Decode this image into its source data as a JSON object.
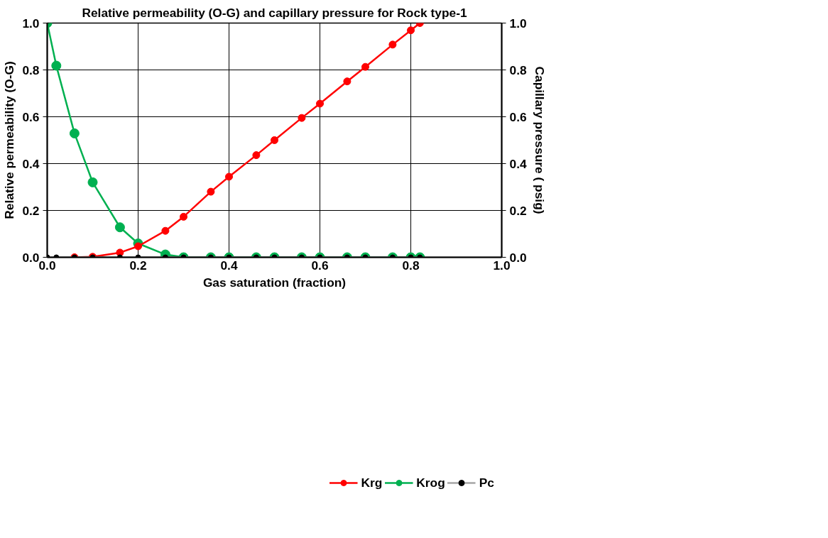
{
  "chart_data": {
    "type": "line",
    "title": "Relative permeability (O-G) and capillary pressure for Rock type-1",
    "xlabel": "Gas saturation (fraction)",
    "ylabel": "Relative permeability (O-G)",
    "y2label": "Capillary pressure ( psig)",
    "x": [
      0,
      0.02,
      0.06,
      0.1,
      0.16,
      0.2,
      0.26,
      0.3,
      0.36,
      0.4,
      0.46,
      0.5,
      0.56,
      0.6,
      0.66,
      0.7,
      0.76,
      0.8,
      0.82
    ],
    "series": [
      {
        "name": "Krg",
        "color": "#ff0000",
        "values": [
          null,
          null,
          0,
          0.002,
          0.02,
          0.047,
          0.113,
          0.173,
          0.28,
          0.344,
          0.436,
          0.5,
          0.595,
          0.656,
          0.751,
          0.813,
          0.908,
          0.969,
          1.0
        ]
      },
      {
        "name": "Krog",
        "color": "#00b050",
        "values": [
          1.0,
          0.818,
          0.529,
          0.32,
          0.128,
          0.059,
          0.012,
          0,
          0,
          0,
          0,
          0,
          0,
          0,
          0,
          0,
          0,
          0,
          0
        ]
      },
      {
        "name": "Pc",
        "color": "#a6a6a6",
        "axis": "y2",
        "values": [
          0,
          0,
          0,
          0,
          0,
          0,
          0,
          0,
          0,
          0,
          0,
          0,
          0,
          0,
          0,
          0,
          0,
          0,
          0
        ]
      }
    ],
    "xlim": [
      0,
      1.0
    ],
    "xticks": [
      {
        "value": 0,
        "label": "0.0"
      },
      {
        "value": 0.2,
        "label": "0.2"
      },
      {
        "value": 0.4,
        "label": "0.4"
      },
      {
        "value": 0.6,
        "label": "0.6"
      },
      {
        "value": 0.8,
        "label": "0.8"
      },
      {
        "value": 1.0,
        "label": "1.0"
      }
    ],
    "ylim": [
      0,
      1.0
    ],
    "yticks": [
      {
        "value": 0,
        "label": "0.0"
      },
      {
        "value": 0.2,
        "label": "0.2"
      },
      {
        "value": 0.4,
        "label": "0.4"
      },
      {
        "value": 0.6,
        "label": "0.6"
      },
      {
        "value": 0.8,
        "label": "0.8"
      },
      {
        "value": 1.0,
        "label": "1.0"
      }
    ],
    "y2lim": [
      0,
      1.0
    ],
    "y2ticks": [
      {
        "value": 0,
        "label": "0.0"
      },
      {
        "value": 0.2,
        "label": "0.2"
      },
      {
        "value": 0.4,
        "label": "0.4"
      },
      {
        "value": 0.6,
        "label": "0.6"
      },
      {
        "value": 0.8,
        "label": "0.8"
      },
      {
        "value": 1.0,
        "label": "1.0"
      }
    ],
    "grid": true,
    "legend": "bottom",
    "marker": "circle",
    "line_style": "solid"
  }
}
